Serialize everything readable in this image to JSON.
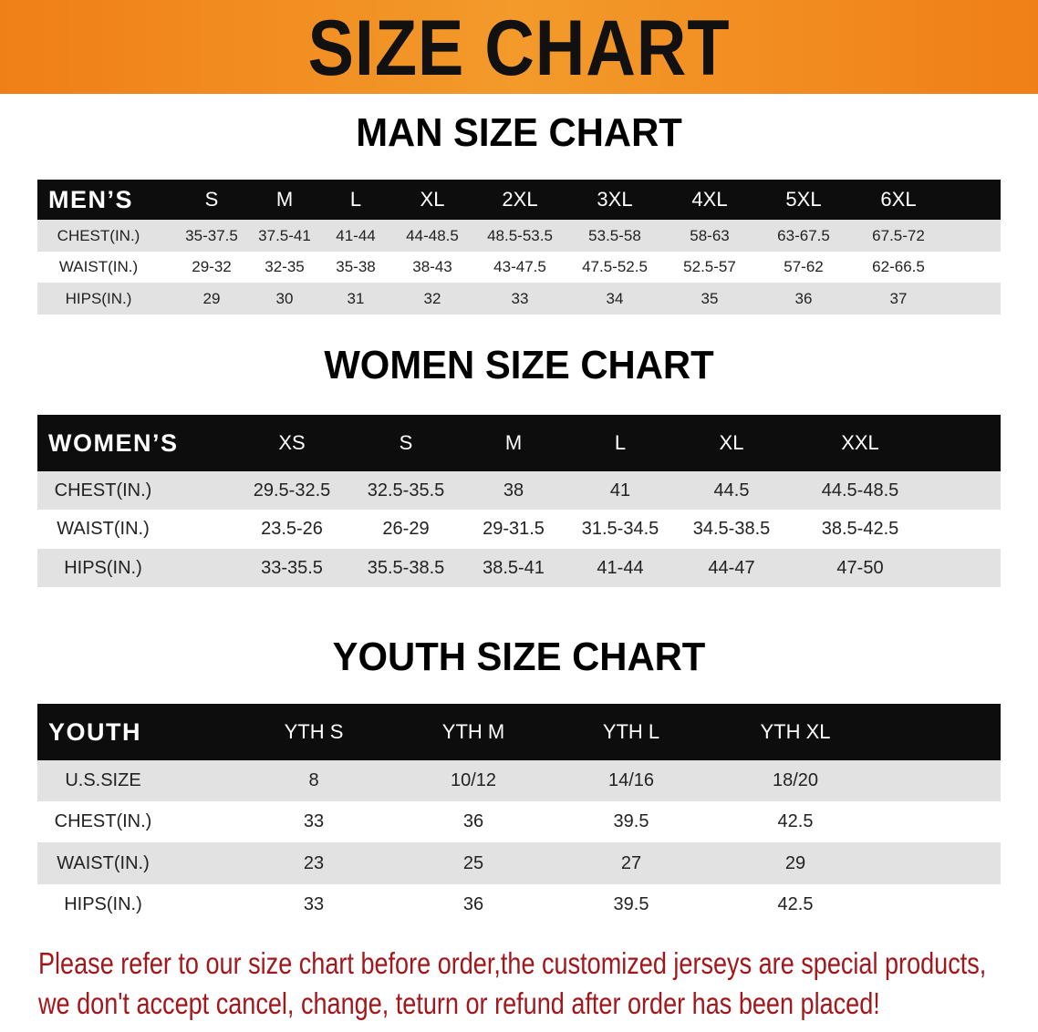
{
  "banner": {
    "title": "SIZE CHART",
    "color": "#f08a1c"
  },
  "men": {
    "title": "MAN SIZE CHART",
    "header": [
      "MEN’S",
      "S",
      "M",
      "L",
      "XL",
      "2XL",
      "3XL",
      "4XL",
      "5XL",
      "6XL"
    ],
    "rows": [
      [
        "CHEST(IN.)",
        "35-37.5",
        "37.5-41",
        "41-44",
        "44-48.5",
        "48.5-53.5",
        "53.5-58",
        "58-63",
        "63-67.5",
        "67.5-72"
      ],
      [
        "WAIST(IN.)",
        "29-32",
        "32-35",
        "35-38",
        "38-43",
        "43-47.5",
        "47.5-52.5",
        "52.5-57",
        "57-62",
        "62-66.5"
      ],
      [
        "HIPS(IN.)",
        "29",
        "30",
        "31",
        "32",
        "33",
        "34",
        "35",
        "36",
        "37"
      ]
    ]
  },
  "women": {
    "title": "WOMEN SIZE CHART",
    "header": [
      "WOMEN’S",
      "XS",
      "S",
      "M",
      "L",
      "XL",
      "XXL"
    ],
    "rows": [
      [
        "CHEST(IN.)",
        "29.5-32.5",
        "32.5-35.5",
        "38",
        "41",
        "44.5",
        "44.5-48.5"
      ],
      [
        "WAIST(IN.)",
        "23.5-26",
        "26-29",
        "29-31.5",
        "31.5-34.5",
        "34.5-38.5",
        "38.5-42.5"
      ],
      [
        "HIPS(IN.)",
        "33-35.5",
        "35.5-38.5",
        "38.5-41",
        "41-44",
        "44-47",
        "47-50"
      ]
    ]
  },
  "youth": {
    "title": "YOUTH SIZE CHART",
    "header": [
      "YOUTH",
      "YTH S",
      "YTH M",
      "YTH L",
      "YTH XL"
    ],
    "rows": [
      [
        "U.S.SIZE",
        "8",
        "10/12",
        "14/16",
        "18/20"
      ],
      [
        "CHEST(IN.)",
        "33",
        "36",
        "39.5",
        "42.5"
      ],
      [
        "WAIST(IN.)",
        "23",
        "25",
        "27",
        "29"
      ],
      [
        "HIPS(IN.)",
        "33",
        "36",
        "39.5",
        "42.5"
      ]
    ]
  },
  "notice": {
    "line1": "Please refer to our size chart before order,the customized jerseys are special products,",
    "line2": "we don't accept cancel, change, teturn or refund after order has been placed!",
    "color": "#a3171c"
  }
}
